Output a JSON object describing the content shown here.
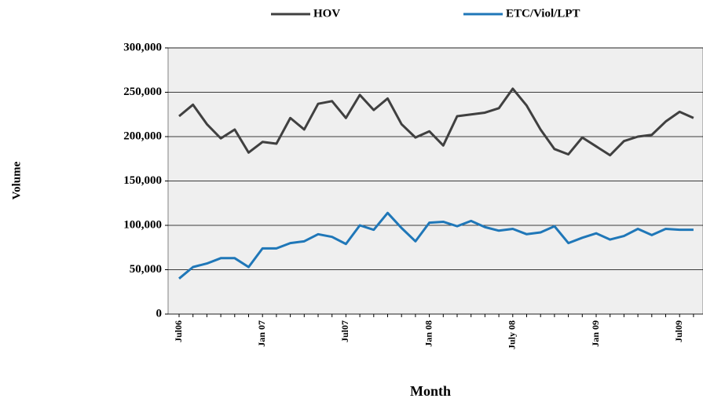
{
  "chart_data": {
    "type": "line",
    "x_label": "Month",
    "y_label": "Volume",
    "categories": [
      "Jul06",
      null,
      null,
      null,
      null,
      null,
      "Jan 07",
      null,
      null,
      null,
      null,
      null,
      "Jul07",
      null,
      null,
      null,
      null,
      null,
      "Jan 08",
      null,
      null,
      null,
      null,
      null,
      "July 08",
      null,
      null,
      null,
      null,
      null,
      "Jan 09",
      null,
      null,
      null,
      null,
      null,
      "Jul09",
      null
    ],
    "series": [
      {
        "name": "HOV",
        "color": "#404040",
        "values": [
          223000,
          236000,
          214000,
          198000,
          208000,
          182000,
          194000,
          192000,
          221000,
          208000,
          237000,
          240000,
          221000,
          247000,
          230000,
          243000,
          214000,
          199000,
          206000,
          190000,
          223000,
          225000,
          227000,
          232000,
          254000,
          235000,
          208000,
          186000,
          180000,
          199000,
          189000,
          179000,
          195000,
          200000,
          202000,
          217000,
          228000,
          221000
        ]
      },
      {
        "name": "ETC/Viol/LPT",
        "color": "#1f77b8",
        "values": [
          40000,
          53000,
          57000,
          63000,
          63000,
          53000,
          74000,
          74000,
          80000,
          82000,
          90000,
          87000,
          79000,
          100000,
          95000,
          114000,
          97000,
          82000,
          103000,
          104000,
          99000,
          105000,
          98000,
          94000,
          96000,
          90000,
          92000,
          99000,
          80000,
          86000,
          91000,
          84000,
          88000,
          96000,
          89000,
          96000,
          95000,
          95000
        ]
      }
    ],
    "ylim": [
      0,
      300000
    ],
    "yticks": [
      {
        "value": 0,
        "label": "0"
      },
      {
        "value": 50000,
        "label": "50,000"
      },
      {
        "value": 100000,
        "label": "100,000"
      },
      {
        "value": 150000,
        "label": "150,000"
      },
      {
        "value": 200000,
        "label": "200,000"
      },
      {
        "value": 250000,
        "label": "250,000"
      },
      {
        "value": 300000,
        "label": "300,000"
      }
    ],
    "grid": true,
    "legend": "top"
  }
}
